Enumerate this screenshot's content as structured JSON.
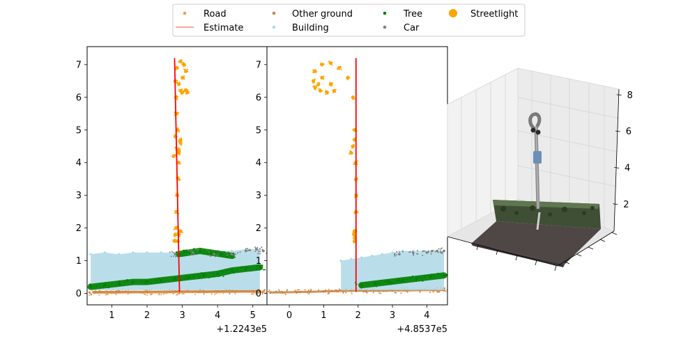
{
  "legend": {
    "entries": [
      {
        "label": "Road",
        "color": "#ee9e5a",
        "marker": "dot-small"
      },
      {
        "label": "Estimate",
        "color": "#e84c4c",
        "marker": "line"
      },
      {
        "label": "Other ground",
        "color": "#cd853f",
        "marker": "dot-small"
      },
      {
        "label": "Building",
        "color": "#add8e6",
        "marker": "dot-small"
      },
      {
        "label": "Tree",
        "color": "#008000",
        "marker": "dot-small"
      },
      {
        "label": "Car",
        "color": "#808080",
        "marker": "dot-small"
      },
      {
        "label": "Streetlight",
        "color": "#ffa500",
        "marker": "dot-large"
      }
    ],
    "placement": "top-center",
    "columns": 4
  },
  "chart_data": [
    {
      "type": "scatter",
      "xlim": [
        0.3,
        5.4
      ],
      "ylim": [
        -0.35,
        7.55
      ],
      "xticks": [
        1,
        2,
        3,
        4,
        5
      ],
      "yticks": [
        0,
        1,
        2,
        3,
        4,
        5,
        6,
        7
      ],
      "offset_label": "+1.2243e5",
      "series": [
        {
          "name": "Road",
          "color": "#ee9e5a",
          "x": [
            0.5,
            1.0,
            1.5,
            2.0,
            2.5,
            3.0,
            3.5,
            4.0,
            4.5,
            5.0,
            5.3
          ],
          "y": [
            0.02,
            0.02,
            0.03,
            0.03,
            0.03,
            0.04,
            0.04,
            0.04,
            0.05,
            0.05,
            0.05
          ]
        },
        {
          "name": "Other ground",
          "color": "#cd853f",
          "x": [
            0.5,
            1.2,
            2.0,
            2.8,
            3.6,
            4.4,
            5.2
          ],
          "y": [
            0.04,
            0.05,
            0.05,
            0.06,
            0.06,
            0.07,
            0.07
          ]
        },
        {
          "name": "Building",
          "color": "#add8e6",
          "x": [
            0.4,
            0.8,
            1.2,
            1.6,
            2.0,
            2.4,
            2.8,
            3.2,
            3.6,
            4.0,
            4.4,
            4.8,
            5.2
          ],
          "y_low": [
            0.1,
            0.1,
            0.1,
            0.1,
            0.1,
            0.1,
            0.1,
            0.1,
            0.1,
            0.1,
            0.1,
            0.1,
            0.1
          ],
          "y_high": [
            1.2,
            1.25,
            1.2,
            1.25,
            1.25,
            1.25,
            1.25,
            1.25,
            1.3,
            1.3,
            1.3,
            1.35,
            1.35
          ]
        },
        {
          "name": "Tree",
          "color": "#008000",
          "x": [
            0.4,
            0.8,
            1.2,
            1.6,
            2.0,
            2.4,
            2.8,
            3.2,
            3.6,
            4.0,
            4.4,
            4.8,
            5.2
          ],
          "y": [
            0.2,
            0.25,
            0.3,
            0.35,
            0.35,
            0.4,
            0.45,
            0.5,
            0.55,
            0.6,
            0.7,
            0.75,
            0.8
          ]
        },
        {
          "name": "Tree (upper)",
          "color": "#008000",
          "x": [
            2.9,
            3.2,
            3.5,
            3.8,
            4.1,
            4.4
          ],
          "y": [
            1.2,
            1.25,
            1.3,
            1.25,
            1.2,
            1.15
          ]
        },
        {
          "name": "Car",
          "color": "#808080",
          "x": [
            2.8,
            3.3,
            3.9,
            4.4,
            4.8,
            5.1,
            5.3
          ],
          "y": [
            1.2,
            1.25,
            1.2,
            1.2,
            1.3,
            1.35,
            1.3
          ]
        },
        {
          "name": "Streetlight",
          "color": "#ffa500",
          "x": [
            2.78,
            2.8,
            2.82,
            2.84,
            2.86,
            2.88,
            2.9,
            2.9,
            2.86,
            2.84,
            2.82,
            2.8,
            2.85,
            2.95,
            3.05,
            3.1,
            3.0,
            2.9,
            2.95,
            3.0,
            3.1,
            3.15,
            2.75,
            2.85,
            2.95,
            2.8,
            2.9,
            2.95,
            2.85,
            2.9,
            2.95
          ],
          "y": [
            1.6,
            1.8,
            2.0,
            2.5,
            3.0,
            3.5,
            4.0,
            4.4,
            5.0,
            5.5,
            6.0,
            6.5,
            6.9,
            7.1,
            7.0,
            6.8,
            6.6,
            6.4,
            6.2,
            6.15,
            6.2,
            6.15,
            4.2,
            4.4,
            4.6,
            4.8,
            4.3,
            4.7,
            1.6,
            1.8,
            1.9
          ]
        }
      ],
      "estimate": {
        "name": "Estimate",
        "color": "#ff0000",
        "x": [
          2.78,
          2.92
        ],
        "y": [
          7.2,
          0.05
        ]
      }
    },
    {
      "type": "scatter",
      "xlim": [
        -0.65,
        4.6
      ],
      "ylim": [
        -0.35,
        7.55
      ],
      "xticks": [
        0,
        1,
        2,
        3,
        4
      ],
      "yticks": [
        0,
        1,
        2,
        3,
        4,
        5,
        6,
        7
      ],
      "offset_label": "+4.8537e5",
      "series": [
        {
          "name": "Other ground",
          "color": "#cd853f",
          "x": [
            -0.55,
            -0.2,
            0.2,
            0.6,
            1.0,
            1.4,
            1.8,
            2.2,
            2.6,
            3.0,
            3.4,
            3.8,
            4.2,
            4.5
          ],
          "y": [
            0.03,
            0.03,
            0.04,
            0.05,
            0.06,
            0.07,
            0.08,
            0.08,
            0.08,
            0.09,
            0.09,
            0.1,
            0.1,
            0.1
          ]
        },
        {
          "name": "Building",
          "color": "#add8e6",
          "x": [
            1.5,
            1.8,
            2.1,
            2.4,
            2.7,
            3.0,
            3.3,
            3.6,
            3.9,
            4.2,
            4.5
          ],
          "y_low": [
            0.1,
            0.1,
            0.1,
            0.1,
            0.1,
            0.1,
            0.1,
            0.1,
            0.1,
            0.1,
            0.1
          ],
          "y_high": [
            1.0,
            1.05,
            1.1,
            1.15,
            1.2,
            1.25,
            1.3,
            1.3,
            1.3,
            1.3,
            1.3
          ]
        },
        {
          "name": "Tree",
          "color": "#008000",
          "x": [
            2.1,
            2.5,
            2.9,
            3.3,
            3.7,
            4.1,
            4.5
          ],
          "y": [
            0.25,
            0.3,
            0.35,
            0.4,
            0.45,
            0.5,
            0.55
          ]
        },
        {
          "name": "Car",
          "color": "#808080",
          "x": [
            3.2,
            3.6,
            4.0,
            4.3,
            4.5
          ],
          "y": [
            1.2,
            1.25,
            1.25,
            1.3,
            1.3
          ]
        },
        {
          "name": "Streetlight",
          "color": "#ffa500",
          "x": [
            1.9,
            1.92,
            1.94,
            1.95,
            1.95,
            1.93,
            1.9,
            1.85,
            1.7,
            1.45,
            1.2,
            0.95,
            0.75,
            0.7,
            0.75,
            0.9,
            1.1,
            1.3,
            0.95,
            0.85,
            1.2,
            1.8,
            1.85,
            1.9,
            1.9,
            1.88,
            1.9
          ],
          "y": [
            1.6,
            1.9,
            2.5,
            3.0,
            3.5,
            4.0,
            5.0,
            6.0,
            6.6,
            6.9,
            7.05,
            7.0,
            6.8,
            6.5,
            6.3,
            6.2,
            6.15,
            6.2,
            6.6,
            6.4,
            6.4,
            4.3,
            4.5,
            4.7,
            1.7,
            1.8,
            1.9
          ]
        }
      ],
      "estimate": {
        "name": "Estimate",
        "color": "#ff0000",
        "x": [
          1.94,
          1.94
        ],
        "y": [
          7.2,
          0.05
        ]
      }
    },
    {
      "type": "scatter3d",
      "zticks": [
        2,
        4,
        6,
        8
      ],
      "zlim": [
        0.5,
        8.3
      ],
      "series": [
        {
          "name": "Road",
          "color": "#5a4e4e"
        },
        {
          "name": "Tree",
          "color": "#3e5a33"
        },
        {
          "name": "Building",
          "color": "#6e8fb5"
        },
        {
          "name": "Streetlight",
          "color": "#8a8a8a"
        }
      ]
    }
  ]
}
